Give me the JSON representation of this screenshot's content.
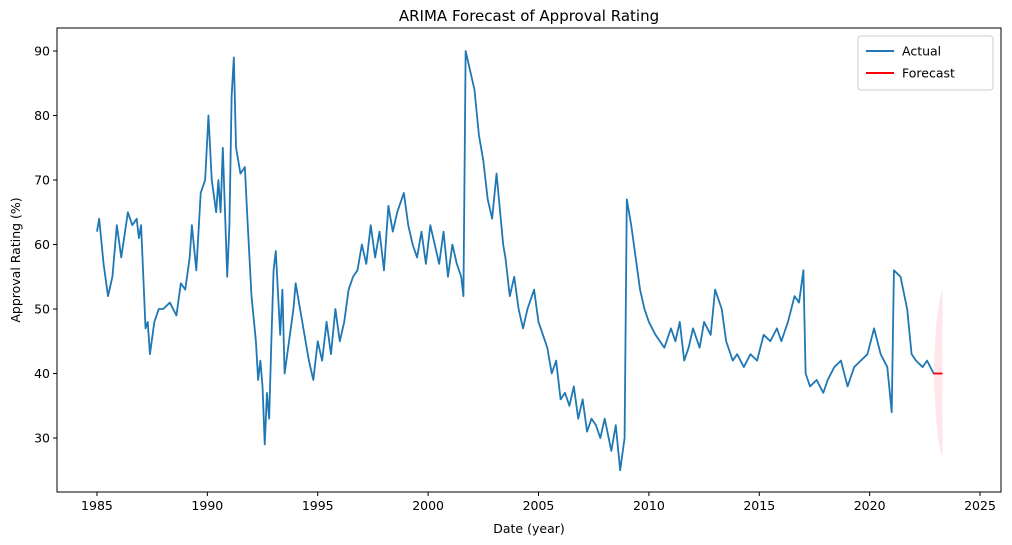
{
  "chart_data": {
    "type": "line",
    "title": "ARIMA Forecast of Approval Rating",
    "x_label": "Date (year)",
    "y_label": "Approval Rating (%)",
    "xlim": [
      1983.19,
      2025.95
    ],
    "ylim": [
      21.63,
      93.57
    ],
    "xticks": [
      1985,
      1990,
      1995,
      2000,
      2005,
      2010,
      2015,
      2020,
      2025
    ],
    "yticks": [
      30,
      40,
      50,
      60,
      70,
      80,
      90
    ],
    "legend": "upper right",
    "grid": false,
    "series": [
      {
        "name": "Actual",
        "color": "#1f77b4",
        "x": [
          1985.0,
          1985.1,
          1985.3,
          1985.5,
          1985.7,
          1985.9,
          1986.1,
          1986.4,
          1986.6,
          1986.8,
          1986.9,
          1987.0,
          1987.2,
          1987.3,
          1987.4,
          1987.6,
          1987.8,
          1988.0,
          1988.3,
          1988.6,
          1988.8,
          1989.0,
          1989.2,
          1989.3,
          1989.5,
          1989.7,
          1989.9,
          1990.05,
          1990.2,
          1990.4,
          1990.5,
          1990.6,
          1990.7,
          1990.9,
          1991.0,
          1991.1,
          1991.2,
          1991.3,
          1991.5,
          1991.7,
          1991.8,
          1992.0,
          1992.2,
          1992.3,
          1992.4,
          1992.5,
          1992.6,
          1992.7,
          1992.8,
          1992.9,
          1993.0,
          1993.1,
          1993.3,
          1993.4,
          1993.5,
          1993.7,
          1993.9,
          1994.0,
          1994.2,
          1994.4,
          1994.6,
          1994.8,
          1995.0,
          1995.2,
          1995.4,
          1995.6,
          1995.8,
          1996.0,
          1996.2,
          1996.4,
          1996.6,
          1996.8,
          1997.0,
          1997.2,
          1997.4,
          1997.6,
          1997.8,
          1998.0,
          1998.2,
          1998.4,
          1998.6,
          1998.9,
          1999.1,
          1999.3,
          1999.5,
          1999.7,
          1999.9,
          2000.1,
          2000.3,
          2000.5,
          2000.7,
          2000.9,
          2001.1,
          2001.3,
          2001.5,
          2001.6,
          2001.7,
          2001.9,
          2002.1,
          2002.3,
          2002.5,
          2002.7,
          2002.9,
          2003.1,
          2003.4,
          2003.5,
          2003.7,
          2003.9,
          2004.1,
          2004.3,
          2004.5,
          2004.8,
          2005.0,
          2005.2,
          2005.4,
          2005.6,
          2005.8,
          2006.0,
          2006.2,
          2006.4,
          2006.6,
          2006.8,
          2007.0,
          2007.2,
          2007.4,
          2007.6,
          2007.8,
          2008.0,
          2008.3,
          2008.5,
          2008.7,
          2008.9,
          2009.0,
          2009.2,
          2009.4,
          2009.6,
          2009.8,
          2010.0,
          2010.3,
          2010.5,
          2010.7,
          2011.0,
          2011.2,
          2011.4,
          2011.6,
          2011.8,
          2012.0,
          2012.3,
          2012.5,
          2012.8,
          2013.0,
          2013.3,
          2013.5,
          2013.8,
          2014.0,
          2014.3,
          2014.6,
          2014.9,
          2015.2,
          2015.5,
          2015.8,
          2016.0,
          2016.3,
          2016.6,
          2016.8,
          2017.0,
          2017.1,
          2017.3,
          2017.6,
          2017.9,
          2018.1,
          2018.4,
          2018.7,
          2019.0,
          2019.3,
          2019.6,
          2019.9,
          2020.2,
          2020.5,
          2020.8,
          2021.0,
          2021.1,
          2021.4,
          2021.7,
          2021.9,
          2022.1,
          2022.4,
          2022.6,
          2022.9,
          2023.0
        ],
        "values": [
          62,
          64,
          57,
          52,
          55,
          63,
          58,
          65,
          63,
          64,
          61,
          63,
          47,
          48,
          43,
          48,
          50,
          50,
          51,
          49,
          54,
          53,
          58,
          63,
          56,
          68,
          70,
          80,
          70,
          65,
          70,
          65,
          75,
          55,
          63,
          83,
          89,
          75,
          71,
          72,
          65,
          52,
          45,
          39,
          42,
          38,
          29,
          37,
          33,
          45,
          56,
          59,
          46,
          53,
          40,
          45,
          50,
          54,
          50,
          46,
          42,
          39,
          45,
          42,
          48,
          43,
          50,
          45,
          48,
          53,
          55,
          56,
          60,
          57,
          63,
          58,
          62,
          56,
          66,
          62,
          65,
          68,
          63,
          60,
          58,
          62,
          57,
          63,
          60,
          57,
          62,
          55,
          60,
          57,
          55,
          52,
          90,
          87,
          84,
          77,
          73,
          67,
          64,
          71,
          60,
          58,
          52,
          55,
          50,
          47,
          50,
          53,
          48,
          46,
          44,
          40,
          42,
          36,
          37,
          35,
          38,
          33,
          36,
          31,
          33,
          32,
          30,
          33,
          28,
          32,
          25,
          30,
          67,
          63,
          58,
          53,
          50,
          48,
          46,
          45,
          44,
          47,
          45,
          48,
          42,
          44,
          47,
          44,
          48,
          46,
          53,
          50,
          45,
          42,
          43,
          41,
          43,
          42,
          46,
          45,
          47,
          45,
          48,
          52,
          51,
          56,
          40,
          38,
          39,
          37,
          39,
          41,
          42,
          38,
          41,
          42,
          43,
          47,
          43,
          41,
          34,
          56,
          55,
          50,
          43,
          42,
          41,
          42,
          40,
          40
        ]
      },
      {
        "name": "Forecast",
        "color": "#ff0000",
        "band_color": "#ffc0cb",
        "x": [
          2022.9,
          2023.0,
          2023.1,
          2023.2,
          2023.3
        ],
        "values": [
          40,
          40,
          40,
          40,
          40
        ],
        "lower": [
          40,
          33,
          30,
          28,
          27
        ],
        "upper": [
          40,
          47,
          50,
          52,
          53
        ]
      }
    ]
  }
}
